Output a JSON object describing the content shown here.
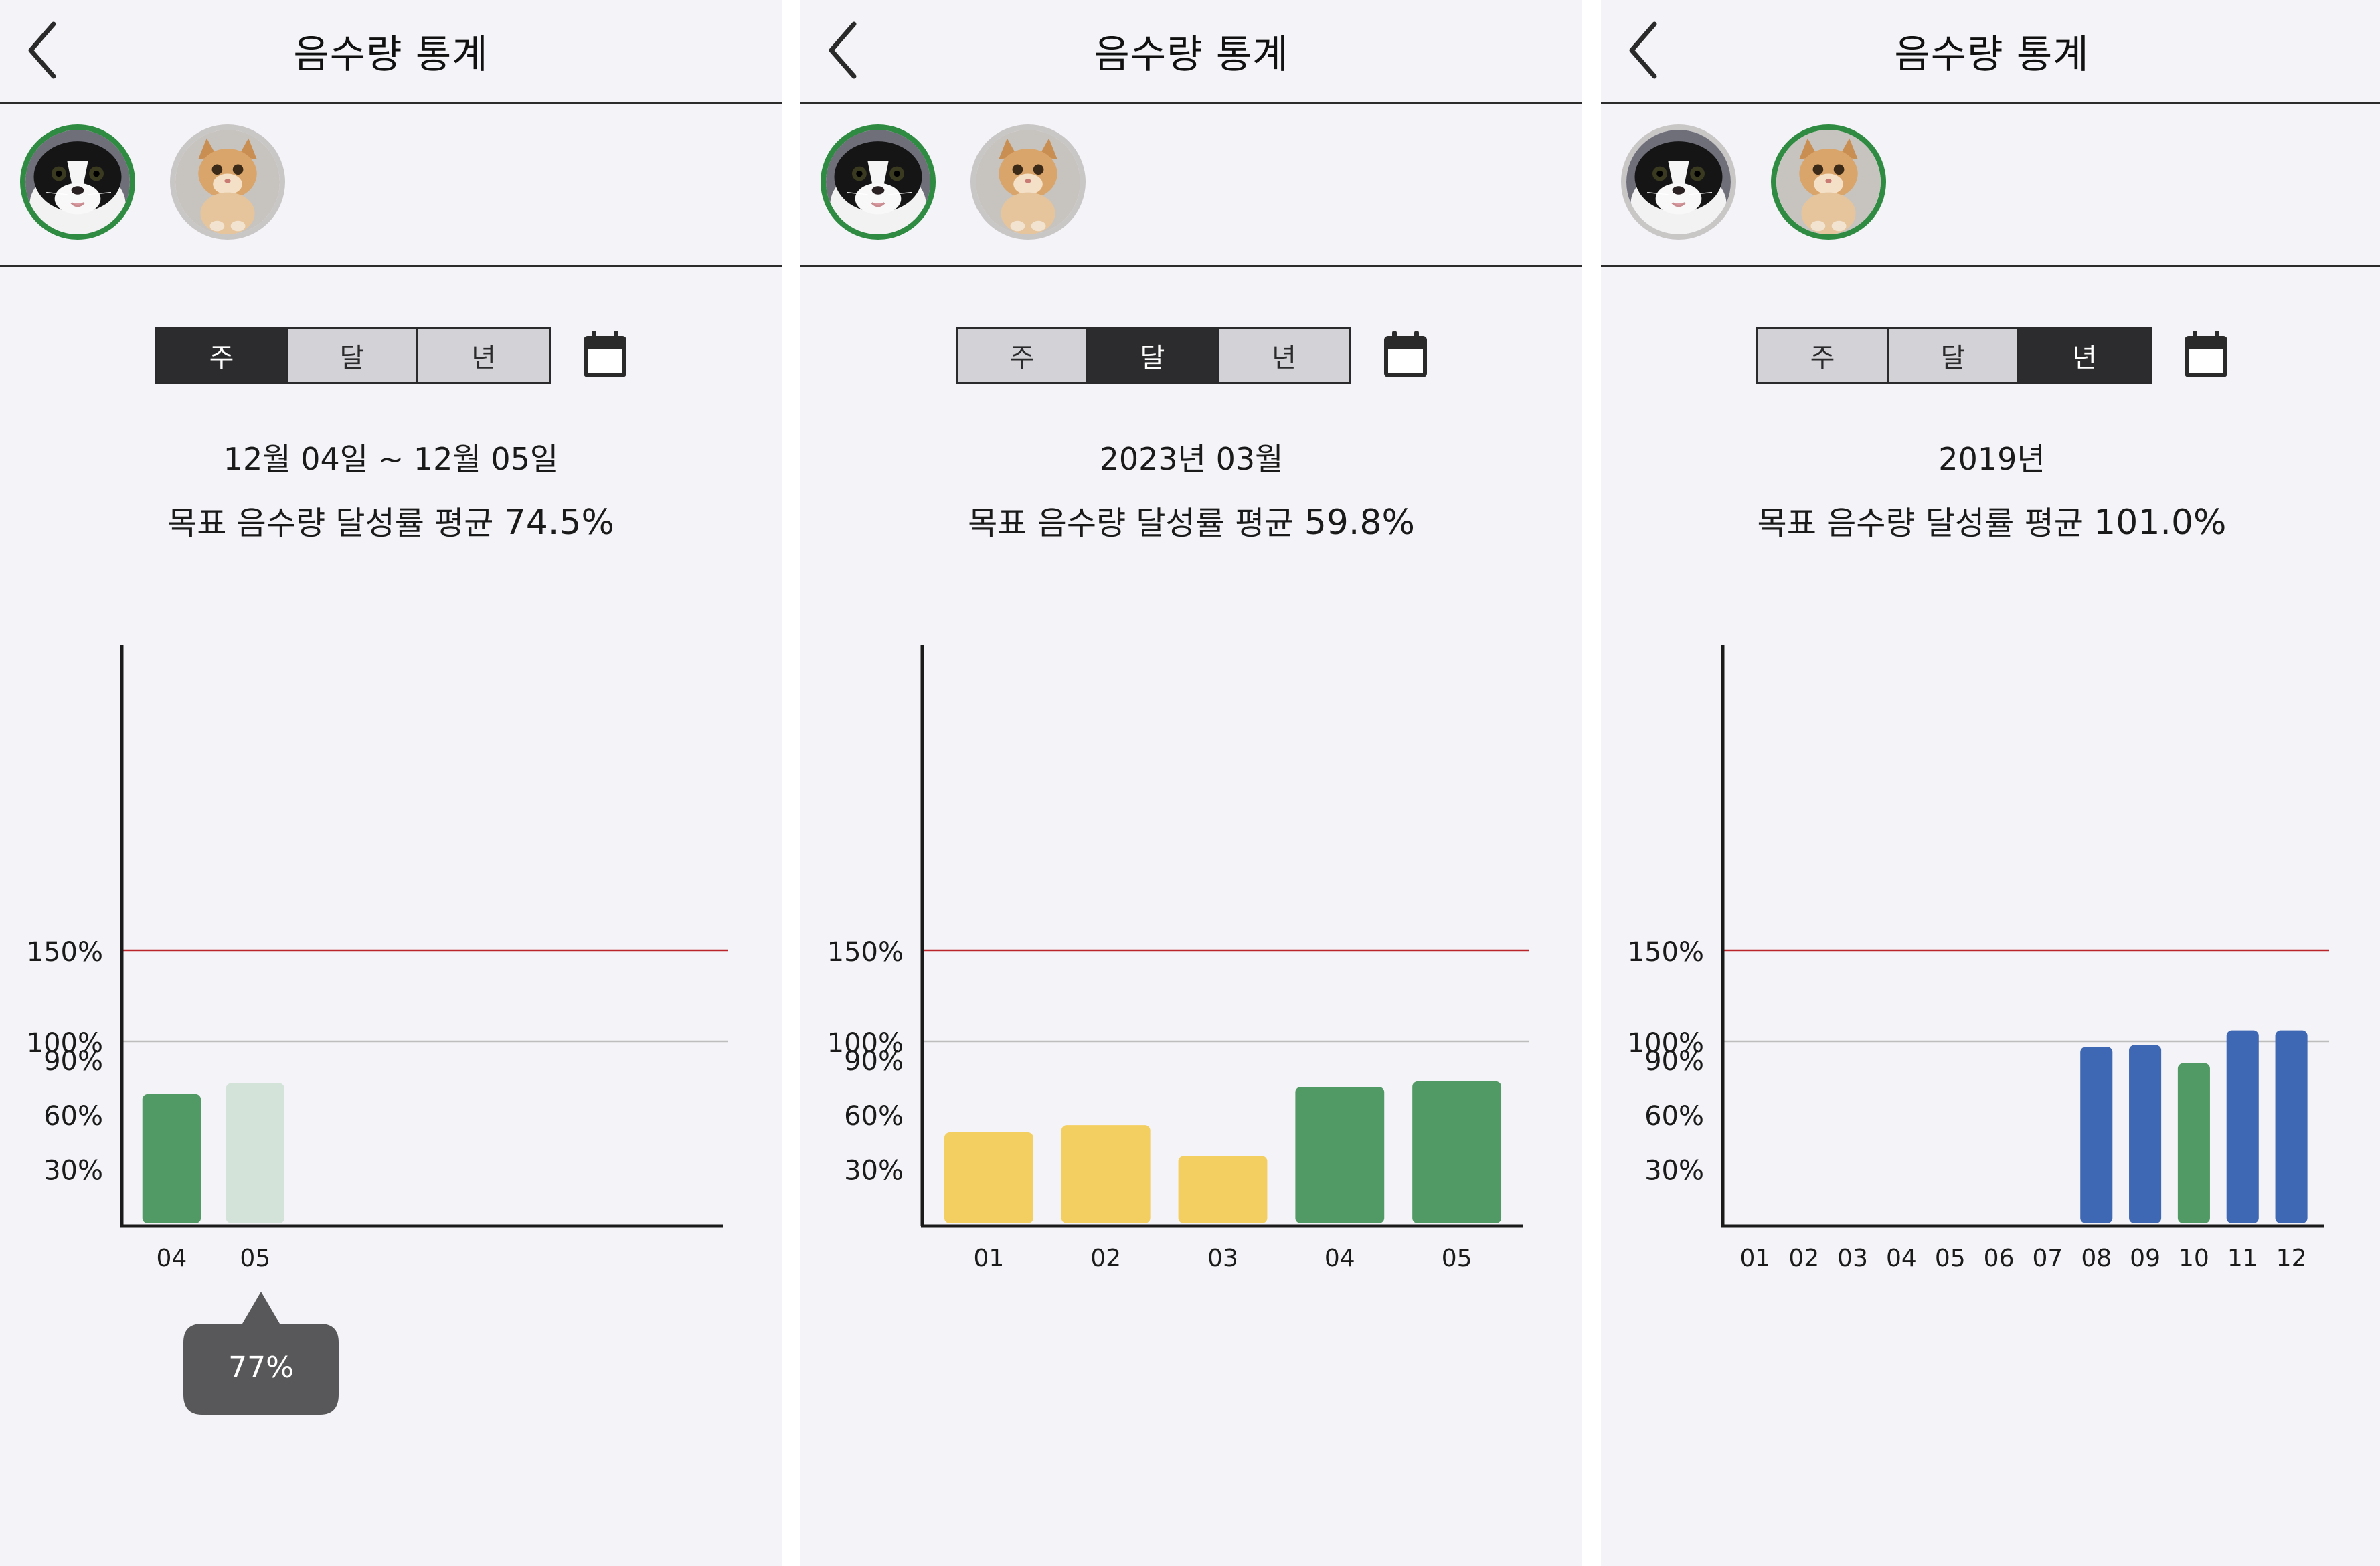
{
  "header": {
    "title": "음수량 통계"
  },
  "tabs": [
    "주",
    "달",
    "년"
  ],
  "pets": [
    {
      "name": "black-white-cat"
    },
    {
      "name": "orange-kitten"
    }
  ],
  "colors": {
    "green": "#529a65",
    "light_green": "#d3e3d9",
    "yellow": "#f3cf61",
    "blue": "#3e68b4",
    "target_line": "#b8242a",
    "hundred_line": "#bdbdbd",
    "selected_ring": "#2e8b41"
  },
  "panels": [
    {
      "selected_tab": "주",
      "selected_pet": 0,
      "date_range": "12월 04일 ~ 12월 05일",
      "avg_label": "목표 음수량 달성률  평균",
      "avg_value": "74.5%",
      "tooltip": "77%"
    },
    {
      "selected_tab": "달",
      "selected_pet": 0,
      "date_range": "2023년 03월",
      "avg_label": "목표 음수량 달성률  평균",
      "avg_value": "59.8%"
    },
    {
      "selected_tab": "년",
      "selected_pet": 1,
      "date_range": "2019년",
      "avg_label": "목표 음수량 달성률  평균",
      "avg_value": "101.0%"
    }
  ],
  "chart_data": [
    {
      "type": "bar",
      "y_tick_labels": [
        "150%",
        "100%",
        "90%",
        "60%",
        "30%"
      ],
      "y_tick_values": [
        150,
        100,
        90,
        60,
        30
      ],
      "ylim": [
        0,
        200
      ],
      "reference_lines": [
        {
          "value": 150,
          "color": "target_line"
        },
        {
          "value": 100,
          "color": "hundred_line"
        }
      ],
      "slots": 7,
      "categories": [
        "04",
        "05"
      ],
      "values": [
        71,
        77
      ],
      "bar_colors": [
        "green",
        "light_green"
      ]
    },
    {
      "type": "bar",
      "y_tick_labels": [
        "150%",
        "100%",
        "90%",
        "60%",
        "30%"
      ],
      "y_tick_values": [
        150,
        100,
        90,
        60,
        30
      ],
      "ylim": [
        0,
        200
      ],
      "reference_lines": [
        {
          "value": 150,
          "color": "target_line"
        },
        {
          "value": 100,
          "color": "hundred_line"
        }
      ],
      "slots": 5,
      "categories": [
        "01",
        "02",
        "03",
        "04",
        "05"
      ],
      "values": [
        50,
        54,
        37,
        75,
        78
      ],
      "bar_colors": [
        "yellow",
        "yellow",
        "yellow",
        "green",
        "green"
      ]
    },
    {
      "type": "bar",
      "y_tick_labels": [
        "150%",
        "100%",
        "90%",
        "60%",
        "30%"
      ],
      "y_tick_values": [
        150,
        100,
        90,
        60,
        30
      ],
      "ylim": [
        0,
        200
      ],
      "reference_lines": [
        {
          "value": 150,
          "color": "target_line"
        },
        {
          "value": 100,
          "color": "hundred_line"
        }
      ],
      "slots": 12,
      "categories": [
        "01",
        "02",
        "03",
        "04",
        "05",
        "06",
        "07",
        "08",
        "09",
        "10",
        "11",
        "12"
      ],
      "values": [
        0,
        0,
        0,
        0,
        0,
        0,
        0,
        97,
        98,
        88,
        106,
        106
      ],
      "bar_colors": [
        "blue",
        "blue",
        "blue",
        "blue",
        "blue",
        "blue",
        "blue",
        "blue",
        "blue",
        "green",
        "blue",
        "blue"
      ]
    }
  ]
}
